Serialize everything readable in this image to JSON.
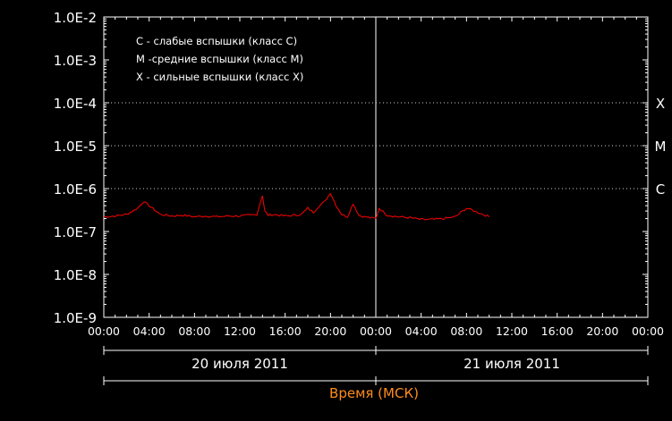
{
  "chart_data": {
    "type": "line",
    "xlabel": "Время (МСК)",
    "y_scale": "log",
    "ylim": [
      "1.0E-9",
      "1.0E-2"
    ],
    "y_ticks": [
      "1.0E-2",
      "1.0E-3",
      "1.0E-4",
      "1.0E-5",
      "1.0E-6",
      "1.0E-7",
      "1.0E-8",
      "1.0E-9"
    ],
    "x_ticks": [
      "00:00",
      "04:00",
      "08:00",
      "12:00",
      "16:00",
      "20:00",
      "00:00",
      "04:00",
      "08:00",
      "12:00",
      "16:00",
      "20:00",
      "00:00"
    ],
    "date_labels": [
      "20 июля 2011",
      "21 июля 2011"
    ],
    "class_lines": [
      {
        "label": "X",
        "value": 0.0001
      },
      {
        "label": "M",
        "value": 1e-05
      },
      {
        "label": "C",
        "value": 1e-06
      }
    ],
    "legend": [
      "C - слабые вспышки (класс C)",
      "M -средние вспышки (класс M)",
      "X - сильные вспышки (класс X)"
    ],
    "colors": {
      "background": "#000000",
      "axes": "#ffffff",
      "series": "#ff0000",
      "xlabel": "#ff8c1a"
    },
    "series": [
      {
        "x_hours": [
          0,
          1,
          2,
          3,
          3.5,
          4,
          5,
          6,
          7,
          8,
          9,
          10,
          11,
          12,
          13,
          13.5,
          14,
          14.2,
          14.5,
          15,
          16,
          17,
          17.5,
          18,
          18.5,
          19,
          19.5,
          20,
          20.5,
          21,
          21.5,
          22,
          22.5,
          23,
          24,
          24.3,
          25,
          26,
          27,
          28,
          29,
          30,
          31,
          32,
          33,
          34
        ],
        "y": [
          2.2e-07,
          2.3e-07,
          2.5e-07,
          3.5e-07,
          5e-07,
          4e-07,
          2.5e-07,
          2.3e-07,
          2.4e-07,
          2.2e-07,
          2.3e-07,
          2.2e-07,
          2.3e-07,
          2.3e-07,
          2.4e-07,
          2.5e-07,
          7e-07,
          3e-07,
          2.4e-07,
          2.5e-07,
          2.3e-07,
          2.4e-07,
          2.6e-07,
          3.5e-07,
          2.8e-07,
          4e-07,
          5e-07,
          8e-07,
          4e-07,
          2.5e-07,
          2.2e-07,
          4.5e-07,
          2.4e-07,
          2.2e-07,
          2e-07,
          3.5e-07,
          2.4e-07,
          2.2e-07,
          2.1e-07,
          1.9e-07,
          1.9e-07,
          2e-07,
          2.2e-07,
          3.5e-07,
          2.8e-07,
          2.2e-07
        ]
      }
    ]
  }
}
